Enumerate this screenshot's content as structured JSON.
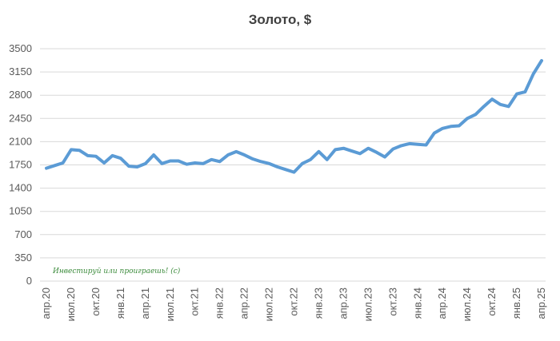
{
  "chart_data": {
    "type": "line",
    "title": "Золото, $",
    "annotation": "Инвестируй или проиграешь! (с)",
    "categories": [
      "апр.20",
      null,
      null,
      "июл.20",
      null,
      null,
      "окт.20",
      null,
      null,
      "янв.21",
      null,
      null,
      "апр.21",
      null,
      null,
      "июл.21",
      null,
      null,
      "окт.21",
      null,
      null,
      "янв.22",
      null,
      null,
      "апр.22",
      null,
      null,
      "июл.22",
      null,
      null,
      "окт.22",
      null,
      null,
      "янв.23",
      null,
      null,
      "апр.23",
      null,
      null,
      "июл.23",
      null,
      null,
      "окт.23",
      null,
      null,
      "янв.24",
      null,
      null,
      "апр.24",
      null,
      null,
      "июл.24",
      null,
      null,
      "окт.24",
      null,
      null,
      "янв.25",
      null,
      null,
      "апр.25"
    ],
    "series": [
      {
        "name": "Золото",
        "color": "#5b9bd5",
        "values": [
          1700,
          1740,
          1780,
          1980,
          1970,
          1890,
          1880,
          1780,
          1890,
          1850,
          1730,
          1720,
          1770,
          1900,
          1770,
          1810,
          1810,
          1760,
          1780,
          1770,
          1830,
          1800,
          1900,
          1950,
          1900,
          1840,
          1800,
          1770,
          1720,
          1680,
          1640,
          1770,
          1830,
          1950,
          1830,
          1980,
          2000,
          1960,
          1920,
          2000,
          1940,
          1870,
          1990,
          2040,
          2070,
          2060,
          2050,
          2230,
          2300,
          2330,
          2340,
          2450,
          2510,
          2630,
          2740,
          2660,
          2630,
          2820,
          2850,
          3120,
          3320
        ]
      }
    ],
    "ylim": [
      0,
      3500
    ],
    "yticks": [
      0,
      350,
      700,
      1050,
      1400,
      1750,
      2100,
      2450,
      2800,
      3150,
      3500
    ],
    "grid": true
  }
}
